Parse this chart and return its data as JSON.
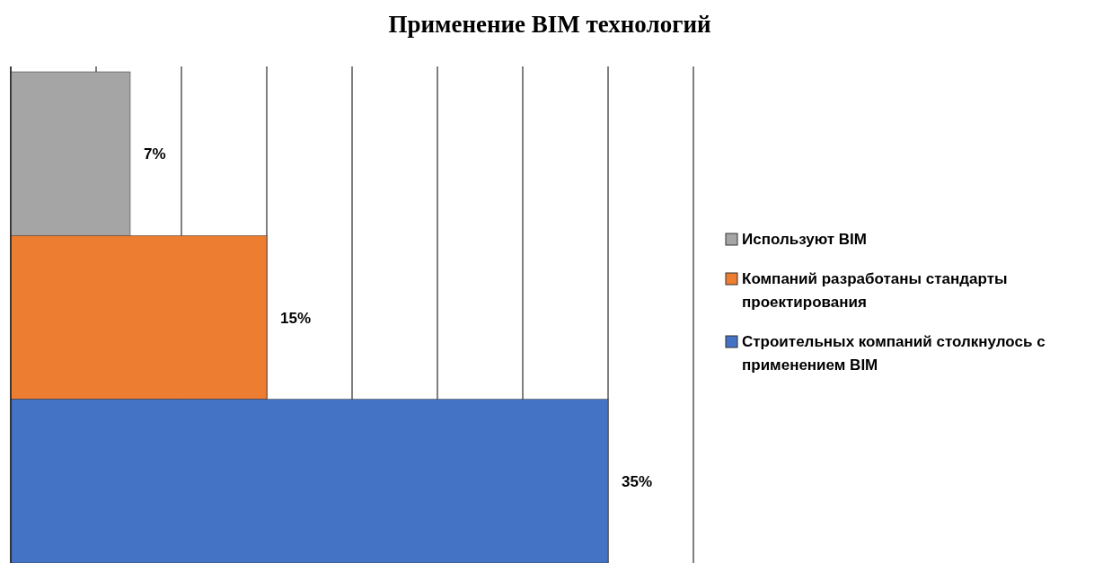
{
  "chart_data": {
    "type": "bar",
    "orientation": "horizontal",
    "title": "Применение BIM технологий",
    "categories": [
      null,
      null,
      null
    ],
    "series": [
      {
        "name": "Используют BIM",
        "color": "#a5a5a5",
        "values": [
          7,
          null,
          null
        ],
        "value_labels": [
          "7%",
          null,
          null
        ]
      },
      {
        "name": "Компаний разработаны стандарты проектирования",
        "color": "#ed7d31",
        "values": [
          null,
          15,
          null
        ],
        "value_labels": [
          null,
          "15%",
          null
        ]
      },
      {
        "name": "Строительных компаний столкнулось с применением BIM",
        "color": "#4472c4",
        "values": [
          null,
          null,
          35
        ],
        "value_labels": [
          null,
          null,
          "35%"
        ]
      }
    ],
    "xlim": [
      0,
      40
    ],
    "xticks": [
      {
        "value": 0,
        "label": null
      },
      {
        "value": 5,
        "label": null
      },
      {
        "value": 10,
        "label": null
      },
      {
        "value": 15,
        "label": null
      },
      {
        "value": 20,
        "label": null
      },
      {
        "value": 25,
        "label": null
      },
      {
        "value": 30,
        "label": null
      },
      {
        "value": 35,
        "label": null
      },
      {
        "value": 40,
        "label": null
      }
    ],
    "stacked": true,
    "grid": "x",
    "legend": "right"
  }
}
